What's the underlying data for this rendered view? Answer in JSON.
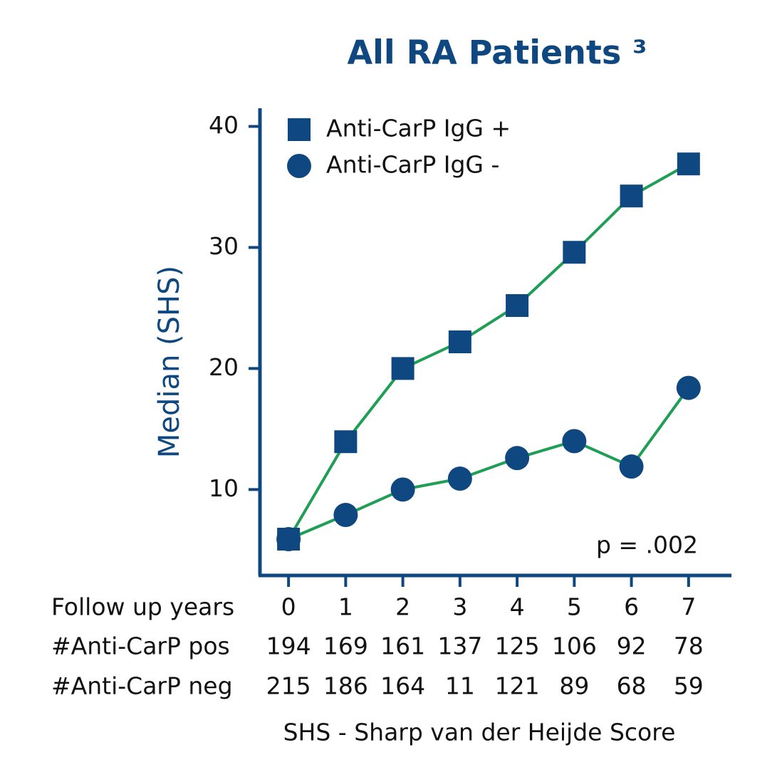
{
  "chart_data": {
    "type": "line",
    "title": "All RA Patients ³",
    "y_label": "Median (SHS)",
    "x_label": "Follow up years",
    "x": [
      0,
      1,
      2,
      3,
      4,
      5,
      6,
      7
    ],
    "xlim": [
      -0.5,
      7.75
    ],
    "xticks": [
      0,
      1,
      2,
      3,
      4,
      5,
      6,
      7
    ],
    "ylim": [
      2.9,
      41.5
    ],
    "yticks": [
      10,
      20,
      30,
      40
    ],
    "line_color": "#1f9e55",
    "series": [
      {
        "name": "Anti-CarP IgG +",
        "color": "#0f4880",
        "marker": "square",
        "values": [
          5.9,
          13.95,
          20,
          22.2,
          25.2,
          29.6,
          34.25,
          36.9
        ]
      },
      {
        "name": "Anti-CarP IgG -",
        "color": "#0f4880",
        "marker": "circle",
        "values": [
          5.9,
          7.9,
          10,
          10.9,
          12.6,
          14,
          11.9,
          18.4
        ]
      }
    ],
    "annotation": "p = .002",
    "counts": [
      {
        "label": "#Anti-CarP pos",
        "values": [
          194,
          169,
          161,
          137,
          125,
          106,
          92,
          78
        ]
      },
      {
        "label": "#Anti-CarP neg",
        "values": [
          215,
          186,
          164,
          11,
          121,
          89,
          68,
          59
        ]
      }
    ],
    "note": "SHS - Sharp van der Heijde Score"
  }
}
